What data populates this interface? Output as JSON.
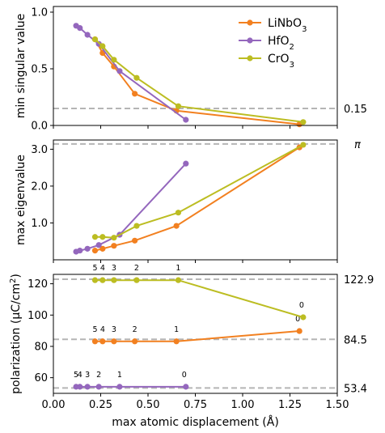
{
  "chart_data": [
    {
      "type": "line",
      "ylabel": "min singular value",
      "xlim": [
        0,
        1.5
      ],
      "ylim": [
        0,
        1.05
      ],
      "yticks": [
        0.0,
        0.5,
        1.0
      ],
      "hline": {
        "y": 0.15,
        "label": "0.15"
      },
      "legend": {
        "position": "top-right",
        "entries": [
          "LiNbO3",
          "HfO2",
          "CrO3"
        ]
      },
      "series": [
        {
          "name": "LiNbO3",
          "color": "#f28020",
          "x": [
            0.22,
            0.26,
            0.32,
            0.43,
            0.65,
            1.3
          ],
          "y": [
            0.76,
            0.64,
            0.52,
            0.28,
            0.13,
            0.01
          ]
        },
        {
          "name": "HfO2",
          "color": "#9467bd",
          "x": [
            0.12,
            0.14,
            0.18,
            0.24,
            0.35,
            0.7
          ],
          "y": [
            0.88,
            0.86,
            0.8,
            0.72,
            0.48,
            0.05
          ]
        },
        {
          "name": "CrO3",
          "color": "#bcbd22",
          "x": [
            0.22,
            0.26,
            0.32,
            0.44,
            0.66,
            1.32
          ],
          "y": [
            0.76,
            0.7,
            0.58,
            0.42,
            0.17,
            0.03
          ]
        }
      ]
    },
    {
      "type": "line",
      "ylabel": "max eigenvalue",
      "xlim": [
        0,
        1.5
      ],
      "ylim": [
        0,
        3.25
      ],
      "yticks": [
        1.0,
        2.0,
        3.0
      ],
      "hline": {
        "y": 3.14159,
        "label": "π"
      },
      "series": [
        {
          "name": "LiNbO3",
          "color": "#f28020",
          "x": [
            0.22,
            0.26,
            0.32,
            0.43,
            0.65,
            1.3
          ],
          "y": [
            0.25,
            0.3,
            0.38,
            0.52,
            0.92,
            3.05
          ]
        },
        {
          "name": "HfO2",
          "color": "#9467bd",
          "x": [
            0.12,
            0.14,
            0.18,
            0.24,
            0.35,
            0.7
          ],
          "y": [
            0.22,
            0.25,
            0.3,
            0.4,
            0.68,
            2.61
          ]
        },
        {
          "name": "CrO3",
          "color": "#bcbd22",
          "x": [
            0.22,
            0.26,
            0.32,
            0.44,
            0.66,
            1.32
          ],
          "y": [
            0.62,
            0.62,
            0.6,
            0.92,
            1.28,
            3.12
          ]
        }
      ]
    },
    {
      "type": "line",
      "xlabel": "max atomic displacement (Å)",
      "ylabel": "polarization (μC/cm²)",
      "xlim": [
        0,
        1.5
      ],
      "ylim": [
        50,
        126
      ],
      "yticks": [
        60,
        80,
        100,
        120
      ],
      "xticks": [
        "0.00",
        "0.25",
        "0.50",
        "0.75",
        "1.00",
        "1.25",
        "1.50"
      ],
      "hlines": [
        {
          "y": 122.9,
          "label": "122.9"
        },
        {
          "y": 84.5,
          "label": "84.5"
        },
        {
          "y": 53.4,
          "label": "53.4"
        }
      ],
      "series": [
        {
          "name": "LiNbO3",
          "color": "#f28020",
          "x": [
            0.22,
            0.26,
            0.32,
            0.43,
            0.65,
            1.3
          ],
          "y": [
            83.2,
            83.2,
            83.2,
            83.2,
            83.2,
            89.8
          ],
          "point_labels": [
            "5",
            "4",
            "3",
            "2",
            "1",
            "0"
          ]
        },
        {
          "name": "HfO2",
          "color": "#9467bd",
          "x": [
            0.12,
            0.14,
            0.18,
            0.24,
            0.35,
            0.7
          ],
          "y": [
            54.2,
            54.2,
            54.2,
            54.2,
            54.2,
            54.2
          ],
          "point_labels": [
            "5",
            "4",
            "3",
            "2",
            "1",
            "0"
          ]
        },
        {
          "name": "CrO3",
          "color": "#bcbd22",
          "x": [
            0.22,
            0.26,
            0.32,
            0.44,
            0.66,
            1.32
          ],
          "y": [
            122.3,
            122.3,
            122.3,
            122.3,
            122.3,
            98.6
          ],
          "point_labels": [
            "5",
            "4",
            "3",
            "2",
            "1",
            "0"
          ]
        }
      ]
    }
  ],
  "legend_text": {
    "LiNbO3": {
      "base": "LiNbO",
      "sub": "3"
    },
    "HfO2": {
      "base": "HfO",
      "sub": "2"
    },
    "CrO3": {
      "base": "CrO",
      "sub": "3"
    }
  }
}
